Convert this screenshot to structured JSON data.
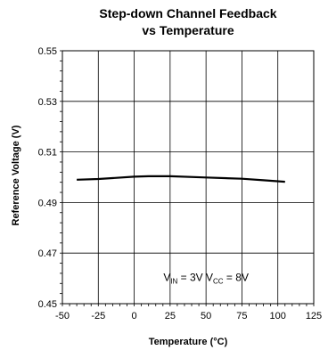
{
  "chart_data": {
    "type": "line",
    "title_lines": [
      "Step-down Channel Feedback",
      "vs Temperature"
    ],
    "xlabel": "Temperature (°C)",
    "ylabel": "Reference Voltage (V)",
    "xlim": [
      -50,
      125
    ],
    "ylim": [
      0.45,
      0.55
    ],
    "x_ticks": [
      -50,
      -25,
      0,
      25,
      50,
      75,
      100,
      125
    ],
    "x_tick_labels": [
      "-50",
      "-25",
      "0",
      "25",
      "50",
      "75",
      "100",
      "125"
    ],
    "y_ticks": [
      0.45,
      0.47,
      0.49,
      0.51,
      0.53,
      0.55
    ],
    "y_tick_labels": [
      "0.45",
      "0.47",
      "0.49",
      "0.51",
      "0.53",
      "0.55"
    ],
    "grid": true,
    "series": [
      {
        "x": [
          -40,
          -25,
          0,
          10,
          25,
          50,
          75,
          90,
          105
        ],
        "y": [
          0.499,
          0.4993,
          0.5002,
          0.5004,
          0.5004,
          0.4999,
          0.4994,
          0.4988,
          0.4982
        ]
      }
    ],
    "annotation": {
      "parts": [
        {
          "text": "V",
          "sub": false
        },
        {
          "text": "IN",
          "sub": true
        },
        {
          "text": " = 3V  V",
          "sub": false
        },
        {
          "text": "CC",
          "sub": true
        },
        {
          "text": " = 8V",
          "sub": false
        }
      ],
      "at": [
        50,
        0.459
      ]
    },
    "colors": {
      "line": "#000000",
      "grid": "#000000"
    }
  }
}
